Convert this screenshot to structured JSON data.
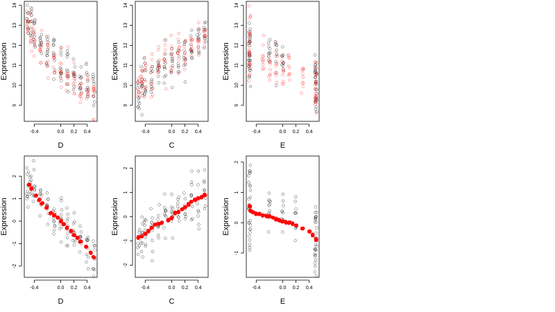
{
  "chart_data": [
    {
      "type": "scatter",
      "panel": "top-left",
      "xlabel": "D",
      "ylabel": "Expression",
      "xlim": [
        -0.55,
        0.55
      ],
      "ylim": [
        8.2,
        14.2
      ],
      "xticks": [
        -0.4,
        0.0,
        0.2,
        0.4
      ],
      "xtick_labels": [
        "-0.4",
        "0.0",
        "0.2",
        "0.4"
      ],
      "yticks": [
        9,
        10,
        11,
        12,
        13,
        14
      ],
      "ytick_labels": [
        "9",
        "10",
        "11",
        "12",
        "13",
        "14"
      ],
      "point_shape": "open-circle",
      "series": [
        {
          "color": "#000000",
          "x": [
            -0.5,
            -0.45,
            -0.4,
            -0.3,
            -0.2,
            -0.1,
            0.0,
            0.1,
            0.2,
            0.3,
            0.4,
            0.5
          ],
          "y": [
            13.4,
            13.2,
            12.8,
            12.2,
            11.9,
            11.5,
            11.0,
            10.8,
            10.5,
            10.3,
            10.0,
            9.6
          ],
          "spread": 0.9
        },
        {
          "color": "#ff0000",
          "x": [
            -0.5,
            -0.45,
            -0.4,
            -0.3,
            -0.2,
            -0.1,
            0.0,
            0.1,
            0.2,
            0.3,
            0.4,
            0.5
          ],
          "y": [
            13.0,
            12.8,
            12.4,
            11.9,
            11.5,
            11.2,
            10.8,
            10.5,
            10.2,
            10.0,
            9.8,
            9.5
          ],
          "spread": 0.9
        }
      ]
    },
    {
      "type": "scatter",
      "panel": "top-middle",
      "xlabel": "C",
      "ylabel": "Expression",
      "xlim": [
        -0.55,
        0.55
      ],
      "ylim": [
        8.2,
        14.2
      ],
      "xticks": [
        -0.4,
        0.0,
        0.2,
        0.4
      ],
      "xtick_labels": [
        "-0.4",
        "0.0",
        "0.2",
        "0.4"
      ],
      "yticks": [
        9,
        10,
        11,
        12,
        13,
        14
      ],
      "ytick_labels": [
        "9",
        "10",
        "11",
        "12",
        "13",
        "14"
      ],
      "point_shape": "open-circle",
      "series": [
        {
          "color": "#000000",
          "x": [
            -0.5,
            -0.45,
            -0.4,
            -0.3,
            -0.2,
            -0.1,
            0.0,
            0.1,
            0.2,
            0.3,
            0.4,
            0.5
          ],
          "y": [
            9.6,
            9.8,
            10.0,
            10.3,
            10.6,
            10.9,
            11.1,
            11.3,
            11.6,
            11.9,
            12.1,
            12.4
          ],
          "spread": 0.9
        },
        {
          "color": "#ff0000",
          "x": [
            -0.5,
            -0.45,
            -0.4,
            -0.3,
            -0.2,
            -0.1,
            0.0,
            0.1,
            0.2,
            0.3,
            0.4,
            0.5
          ],
          "y": [
            9.9,
            10.1,
            10.3,
            10.6,
            10.9,
            11.1,
            11.3,
            11.5,
            11.7,
            12.0,
            12.2,
            12.5
          ],
          "spread": 0.9
        }
      ]
    },
    {
      "type": "scatter",
      "panel": "top-right",
      "xlabel": "E",
      "ylabel": "Expression",
      "xlim": [
        -0.55,
        0.55
      ],
      "ylim": [
        8.2,
        14.2
      ],
      "xticks": [
        -0.4,
        0.0,
        0.2,
        0.4
      ],
      "xtick_labels": [
        "-0.4",
        "0.0",
        "0.2",
        "0.4"
      ],
      "yticks": [
        9,
        10,
        11,
        12,
        13,
        14
      ],
      "ytick_labels": [
        "9",
        "10",
        "11",
        "12",
        "13",
        "14"
      ],
      "point_shape": "open-circle",
      "series": [
        {
          "color": "#000000",
          "x": [
            -0.5,
            -0.5,
            -0.5,
            -0.2,
            -0.1,
            0.0,
            0.5,
            0.5,
            0.5
          ],
          "y": [
            12.6,
            11.5,
            10.5,
            11.6,
            11.4,
            11.2,
            10.8,
            10.0,
            9.3
          ],
          "spread": 0.9
        },
        {
          "color": "#ff0000",
          "x": [
            -0.5,
            -0.5,
            -0.5,
            -0.3,
            -0.2,
            -0.1,
            0.0,
            0.1,
            0.3,
            0.5,
            0.5,
            0.5
          ],
          "y": [
            12.8,
            12.0,
            11.0,
            11.3,
            11.1,
            10.9,
            10.8,
            10.7,
            10.5,
            10.5,
            9.8,
            9.2
          ],
          "spread": 0.9
        }
      ]
    },
    {
      "type": "scatter",
      "panel": "bottom-left",
      "xlabel": "D",
      "ylabel": "Expression",
      "xlim": [
        -0.55,
        0.55
      ],
      "ylim": [
        -2.5,
        2.9
      ],
      "xticks": [
        -0.4,
        0.0,
        0.2,
        0.4
      ],
      "xtick_labels": [
        "-0.4",
        "0.0",
        "0.2",
        "0.4"
      ],
      "yticks": [
        -2,
        -1,
        0,
        1,
        2
      ],
      "ytick_labels": [
        "-2",
        "-1",
        "0",
        "1",
        "2"
      ],
      "point_shape": "open-circle",
      "series": [
        {
          "color": "#000000",
          "x": [
            -0.5,
            -0.45,
            -0.4,
            -0.3,
            -0.2,
            -0.1,
            0.0,
            0.1,
            0.2,
            0.3,
            0.4,
            0.5
          ],
          "y": [
            1.7,
            1.5,
            1.3,
            1.0,
            0.6,
            0.3,
            0.0,
            -0.3,
            -0.6,
            -0.9,
            -1.2,
            -1.6
          ],
          "spread": 0.8
        },
        {
          "color": "#ff0000",
          "filled": true,
          "x": [
            -0.48,
            -0.45,
            -0.38,
            -0.33,
            -0.28,
            -0.22,
            -0.15,
            -0.1,
            -0.05,
            0.0,
            0.05,
            0.1,
            0.15,
            0.2,
            0.25,
            0.3,
            0.38,
            0.45,
            0.5
          ],
          "y": [
            1.6,
            1.45,
            1.15,
            0.95,
            0.8,
            0.6,
            0.35,
            0.25,
            0.15,
            0.0,
            -0.15,
            -0.3,
            -0.45,
            -0.6,
            -0.75,
            -0.9,
            -1.15,
            -1.4,
            -1.6
          ],
          "spread": 0.0
        }
      ]
    },
    {
      "type": "scatter",
      "panel": "bottom-middle",
      "xlabel": "C",
      "ylabel": "Expression",
      "xlim": [
        -0.55,
        0.55
      ],
      "ylim": [
        -2.5,
        2.5
      ],
      "xticks": [
        -0.4,
        0.0,
        0.2,
        0.4
      ],
      "xtick_labels": [
        "-0.4",
        "0.0",
        "0.2",
        "0.4"
      ],
      "yticks": [
        -2,
        -1,
        0,
        1,
        2
      ],
      "ytick_labels": [
        "-2",
        "-1",
        "0",
        "1",
        "2"
      ],
      "point_shape": "open-circle",
      "series": [
        {
          "color": "#000000",
          "x": [
            -0.5,
            -0.45,
            -0.4,
            -0.3,
            -0.2,
            -0.1,
            0.0,
            0.1,
            0.2,
            0.3,
            0.4,
            0.5
          ],
          "y": [
            -0.9,
            -0.8,
            -0.6,
            -0.4,
            -0.2,
            0.0,
            0.1,
            0.3,
            0.5,
            0.7,
            0.8,
            0.9
          ],
          "spread": 0.9
        },
        {
          "color": "#ff0000",
          "filled": true,
          "x": [
            -0.5,
            -0.45,
            -0.4,
            -0.35,
            -0.3,
            -0.25,
            -0.2,
            -0.15,
            -0.05,
            0.0,
            0.05,
            0.1,
            0.15,
            0.2,
            0.25,
            0.3,
            0.35,
            0.4,
            0.45,
            0.5
          ],
          "y": [
            -0.85,
            -0.8,
            -0.7,
            -0.6,
            -0.45,
            -0.35,
            -0.3,
            -0.25,
            -0.15,
            -0.05,
            0.15,
            0.2,
            0.3,
            0.4,
            0.5,
            0.6,
            0.7,
            0.75,
            0.8,
            0.9
          ],
          "spread": 0.0
        }
      ]
    },
    {
      "type": "scatter",
      "panel": "bottom-right",
      "xlabel": "E",
      "ylabel": "Expression",
      "xlim": [
        -0.55,
        0.55
      ],
      "ylim": [
        -1.8,
        2.2
      ],
      "xticks": [
        -0.4,
        0.0,
        0.2,
        0.4
      ],
      "xtick_labels": [
        "-0.4",
        "0.0",
        "0.2",
        "0.4"
      ],
      "yticks": [
        -1,
        0,
        1,
        2
      ],
      "ytick_labels": [
        "-1",
        "0",
        "1",
        "2"
      ],
      "point_shape": "open-circle",
      "series": [
        {
          "color": "#000000",
          "x": [
            -0.5,
            -0.5,
            -0.5,
            -0.2,
            0.0,
            0.2,
            0.5,
            0.5,
            0.5
          ],
          "y": [
            1.2,
            0.3,
            -0.6,
            0.4,
            0.2,
            0.0,
            0.2,
            -0.6,
            -1.2
          ],
          "spread": 0.7
        },
        {
          "color": "#ff0000",
          "filled": true,
          "x": [
            -0.5,
            -0.48,
            -0.45,
            -0.4,
            -0.35,
            -0.3,
            -0.25,
            -0.2,
            -0.15,
            -0.1,
            -0.05,
            0.0,
            0.05,
            0.1,
            0.15,
            0.2,
            0.3,
            0.4,
            0.45,
            0.5
          ],
          "y": [
            0.55,
            0.4,
            0.35,
            0.3,
            0.28,
            0.25,
            0.22,
            0.2,
            0.16,
            0.12,
            0.08,
            0.05,
            0.02,
            0.0,
            -0.03,
            -0.08,
            -0.2,
            -0.3,
            -0.4,
            -0.55
          ],
          "spread": 0.0
        }
      ]
    }
  ]
}
